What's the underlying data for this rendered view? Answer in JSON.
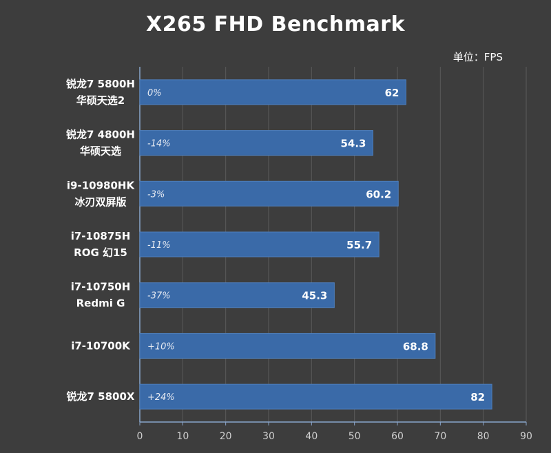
{
  "chart_data": {
    "type": "bar",
    "orientation": "horizontal",
    "title": "X265 FHD Benchmark",
    "unit_label": "单位：FPS",
    "categories": [
      [
        "锐龙7 5800H",
        "华硕天选2"
      ],
      [
        "锐龙7 4800H",
        "华硕天选"
      ],
      [
        "i9-10980HK",
        "冰刃双屏版"
      ],
      [
        "i7-10875H",
        "ROG 幻15"
      ],
      [
        "i7-10750H",
        "Redmi G"
      ],
      [
        "i7-10700K"
      ],
      [
        "锐龙7 5800X"
      ]
    ],
    "values": [
      62,
      54.3,
      60.2,
      55.7,
      45.3,
      68.8,
      82
    ],
    "value_labels": [
      "62",
      "54.3",
      "60.2",
      "55.7",
      "45.3",
      "68.8",
      "82"
    ],
    "delta_labels": [
      "0%",
      "-14%",
      "-3%",
      "-11%",
      "-37%",
      "+10%",
      "+24%"
    ],
    "xlim": [
      0,
      90
    ],
    "xticks": [
      0,
      10,
      20,
      30,
      40,
      50,
      60,
      70,
      80,
      90
    ],
    "grid": "vertical",
    "legend": "none",
    "colors": {
      "background": "#3d3d3d",
      "bar": "#3a6aa8",
      "bar_border": "#4e7fbd",
      "grid": "#5a5a5a",
      "axis": "#8aa6cc",
      "text": "#ffffff",
      "tick_text": "#d0d0d0",
      "delta_text": "#e6eaf2"
    }
  }
}
